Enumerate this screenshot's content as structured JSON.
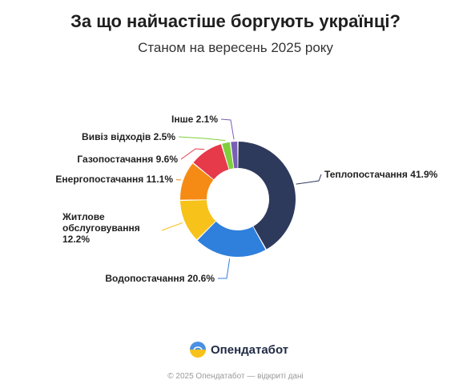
{
  "header": {
    "title": "За що найчастіше боргують українці?",
    "subtitle": "Станом на вересень 2025 року"
  },
  "brand": {
    "name": "Опендатабот"
  },
  "footer": {
    "text": "© 2025 Опендатабот — відкриті дані"
  },
  "colors": {
    "heat": "#2e3a5c",
    "water": "#2f7fdc",
    "housing": "#f7c21a",
    "energy": "#f58b14",
    "gas": "#e6394a",
    "waste": "#7fcf3c",
    "other": "#7a5fb5",
    "leader": "#8a8a8a"
  },
  "chart_data": {
    "type": "pie",
    "donut": true,
    "unit": "%",
    "slices": [
      {
        "label": "Теплопостачання",
        "value": 41.9,
        "color": "#2e3a5c",
        "label_lines": [
          "Теплопостачання 41.9%"
        ]
      },
      {
        "label": "Водопостачання",
        "value": 20.6,
        "color": "#2f7fdc",
        "label_lines": [
          "Водопостачання 20.6%"
        ]
      },
      {
        "label": "Житлове обслуговування",
        "value": 12.2,
        "color": "#f7c21a",
        "label_lines": [
          "Житлове",
          "обслуговування",
          "12.2%"
        ]
      },
      {
        "label": "Енергопостачання",
        "value": 11.1,
        "color": "#f58b14",
        "label_lines": [
          "Енергопостачання 11.1%"
        ]
      },
      {
        "label": "Газопостачання",
        "value": 9.6,
        "color": "#e6394a",
        "label_lines": [
          "Газопостачання 9.6%"
        ]
      },
      {
        "label": "Вивіз відходів",
        "value": 2.5,
        "color": "#7fcf3c",
        "label_lines": [
          "Вивіз відходів 2.5%"
        ]
      },
      {
        "label": "Інше",
        "value": 2.1,
        "color": "#7a5fb5",
        "label_lines": [
          "Інше 2.1%"
        ]
      }
    ]
  }
}
